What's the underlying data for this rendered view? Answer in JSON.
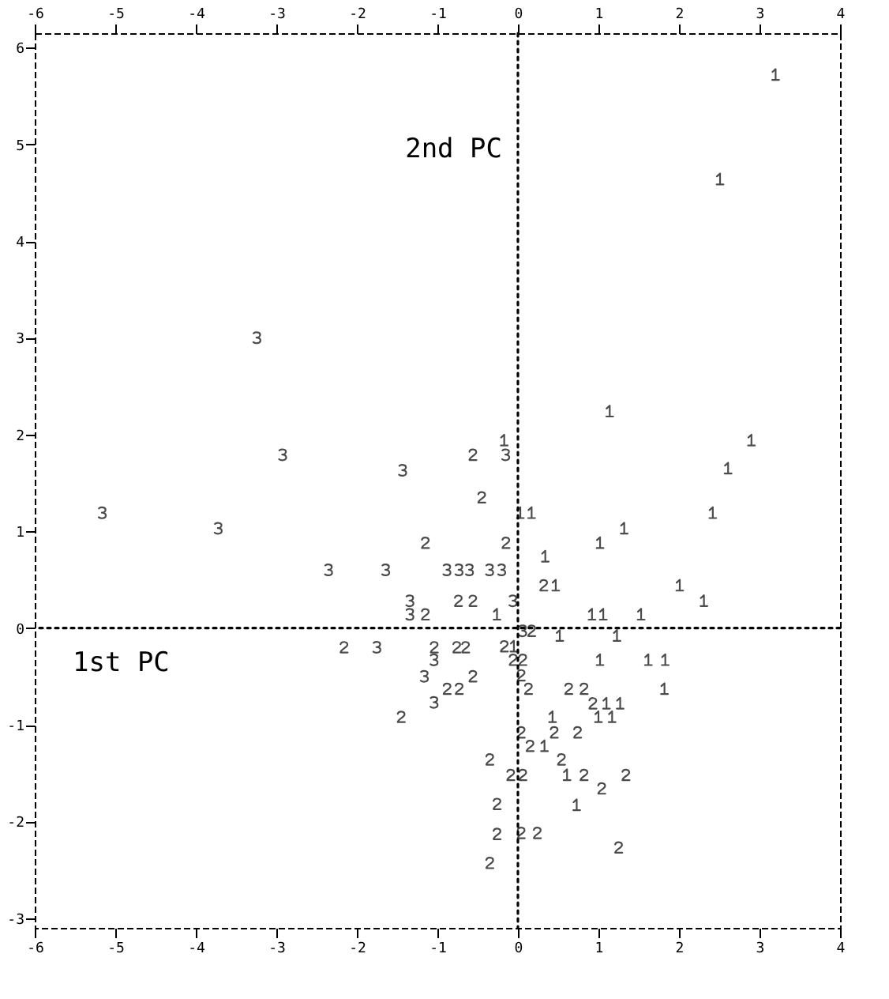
{
  "chart_data": {
    "type": "scatter",
    "xlim": [
      -6,
      4
    ],
    "xticks": [
      -6,
      -5,
      -4,
      -3,
      -2,
      -1,
      0,
      1,
      2,
      3,
      4
    ],
    "x2lim": [
      -6,
      4
    ],
    "x2ticks": [
      -6,
      -5,
      -4,
      -3,
      -2,
      -1,
      0,
      1,
      2,
      3,
      4
    ],
    "ylim": [
      -3.1,
      6.15
    ],
    "yticks": [
      -3,
      -2,
      -1,
      0,
      1,
      2,
      3,
      4,
      5,
      6
    ],
    "grid": false,
    "legend": false,
    "ref_lines": [
      {
        "axis": "x",
        "value": 0,
        "label": "2nd PC",
        "color": "#000000",
        "line_style": "dotted"
      },
      {
        "axis": "y",
        "value": 0,
        "label": "1st PC",
        "color": "#000000",
        "line_style": "dotted"
      }
    ],
    "series": [
      {
        "name": "1",
        "color": "#000000",
        "x": [
          3.2,
          2.51,
          1.14,
          2.9,
          2.61,
          2.42,
          -0.17,
          0.03,
          0.17,
          1.32,
          1.02,
          0.34,
          0.47,
          2.01,
          2.31,
          -0.26,
          0.92,
          1.06,
          1.53,
          0.52,
          1.23,
          -0.05,
          1.02,
          1.62,
          1.83,
          1.82,
          1.1,
          1.27,
          0.43,
          1.0,
          1.17,
          0.33,
          0.61,
          0.73
        ],
        "values": [
          5.72,
          4.64,
          2.24,
          1.94,
          1.65,
          1.19,
          1.94,
          1.19,
          1.19,
          1.03,
          0.88,
          0.74,
          0.44,
          0.44,
          0.28,
          0.14,
          0.14,
          0.14,
          0.14,
          -0.08,
          -0.08,
          -0.19,
          -0.33,
          -0.33,
          -0.33,
          -0.63,
          -0.78,
          -0.78,
          -0.92,
          -0.92,
          -0.92,
          -1.22,
          -1.52,
          -1.83
        ]
      },
      {
        "name": "2",
        "color": "#000000",
        "x": [
          -0.56,
          -0.45,
          -1.15,
          -0.15,
          -0.74,
          -0.56,
          -1.15,
          0.17,
          -0.17,
          -2.16,
          -1.04,
          -0.76,
          -0.65,
          -0.06,
          0.06,
          0.04,
          -0.56,
          -0.88,
          -0.73,
          0.13,
          0.63,
          0.82,
          0.93,
          -1.45,
          0.04,
          0.45,
          0.74,
          0.15,
          0.54,
          -0.35,
          -0.09,
          0.06,
          0.82,
          1.34,
          1.04,
          -0.26,
          -0.26,
          0.04,
          0.24,
          1.25,
          -0.35,
          0.32
        ],
        "values": [
          1.79,
          1.35,
          0.88,
          0.88,
          0.28,
          0.28,
          0.14,
          -0.03,
          -0.19,
          -0.2,
          -0.2,
          -0.2,
          -0.2,
          -0.33,
          -0.33,
          -0.49,
          -0.5,
          -0.63,
          -0.63,
          -0.63,
          -0.63,
          -0.63,
          -0.78,
          -0.92,
          -1.08,
          -1.08,
          -1.08,
          -1.22,
          -1.36,
          -1.36,
          -1.52,
          -1.52,
          -1.52,
          -1.52,
          -1.66,
          -1.82,
          -2.13,
          -2.12,
          -2.12,
          -2.27,
          -2.43,
          0.44
        ]
      },
      {
        "name": "3",
        "color": "#000000",
        "x": [
          -5.16,
          -3.72,
          -3.24,
          -2.92,
          -1.43,
          -0.15,
          -2.35,
          -1.64,
          -0.88,
          -0.73,
          -0.6,
          -0.35,
          -0.2,
          -1.34,
          -0.06,
          -1.34,
          0.06,
          -1.75,
          -1.04,
          -1.16,
          -1.04
        ],
        "values": [
          1.19,
          1.03,
          3.0,
          1.79,
          1.63,
          1.79,
          0.6,
          0.6,
          0.6,
          0.6,
          0.6,
          0.6,
          0.6,
          0.28,
          0.28,
          0.14,
          -0.03,
          -0.2,
          -0.33,
          -0.5,
          -0.77
        ]
      }
    ]
  }
}
